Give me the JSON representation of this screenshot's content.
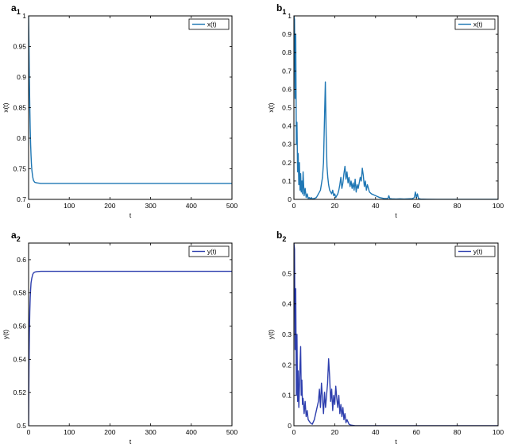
{
  "chart_data": [
    {
      "id": "a1",
      "panel_label": {
        "main": "a",
        "sub": "1"
      },
      "type": "line",
      "xlabel": "t",
      "ylabel": "x(t)",
      "xlim": [
        0,
        500
      ],
      "ylim": [
        0.7,
        1
      ],
      "xticks": [
        0,
        100,
        200,
        300,
        400,
        500
      ],
      "xtick_labels": [
        "0",
        "100",
        "200",
        "300",
        "400",
        "500"
      ],
      "yticks": [
        0.7,
        0.75,
        0.8,
        0.85,
        0.9,
        0.95,
        1
      ],
      "ytick_labels": [
        "0.7",
        "0.75",
        "0.8",
        "0.85",
        "0.9",
        "0.95",
        "1"
      ],
      "legend": {
        "placement": "top-right"
      },
      "series": [
        {
          "name": "x(t)",
          "color": "#1f77b4",
          "x": [
            0,
            1,
            2,
            3,
            4,
            5,
            6,
            7,
            8,
            10,
            12,
            15,
            20,
            30,
            50,
            100,
            200,
            300,
            400,
            500
          ],
          "y": [
            1,
            0.95,
            0.895,
            0.85,
            0.815,
            0.79,
            0.772,
            0.758,
            0.748,
            0.737,
            0.731,
            0.728,
            0.727,
            0.726,
            0.726,
            0.726,
            0.726,
            0.726,
            0.726,
            0.726
          ]
        }
      ]
    },
    {
      "id": "b1",
      "panel_label": {
        "main": "b",
        "sub": "1"
      },
      "type": "line",
      "xlabel": "t",
      "ylabel": "x(t)",
      "xlim": [
        0,
        100
      ],
      "ylim": [
        0,
        1
      ],
      "xticks": [
        0,
        20,
        40,
        60,
        80,
        100
      ],
      "xtick_labels": [
        "0",
        "20",
        "40",
        "60",
        "80",
        "100"
      ],
      "yticks": [
        0,
        0.1,
        0.2,
        0.3,
        0.4,
        0.5,
        0.6,
        0.7,
        0.8,
        0.9,
        1
      ],
      "ytick_labels": [
        "0",
        "0.1",
        "0.2",
        "0.3",
        "0.4",
        "0.5",
        "0.6",
        "0.7",
        "0.8",
        "0.9",
        "1"
      ],
      "legend": {
        "placement": "top-right"
      },
      "series": [
        {
          "name": "x(t)",
          "color": "#1f77b4",
          "x": [
            0,
            0.3,
            0.6,
            0.9,
            1.2,
            1.5,
            1.8,
            2.1,
            2.4,
            2.7,
            3,
            3.3,
            3.6,
            3.9,
            4.2,
            4.5,
            5,
            5.5,
            6,
            6.5,
            7,
            7.5,
            8,
            8.5,
            9,
            10,
            11,
            12,
            13,
            14,
            14.5,
            15,
            15.4,
            15.8,
            16.2,
            16.6,
            17,
            17.5,
            18,
            18.5,
            19,
            19.5,
            20,
            20.5,
            21,
            21.5,
            22,
            22.5,
            23,
            23.5,
            24,
            24.5,
            25,
            25.5,
            26,
            26.5,
            27,
            27.5,
            28,
            28.5,
            29,
            29.5,
            30,
            30.5,
            31,
            31.5,
            32,
            32.5,
            33,
            33.5,
            34,
            34.5,
            35,
            35.5,
            36,
            37,
            38,
            40,
            42,
            44,
            46,
            46.5,
            47,
            48,
            50,
            52,
            54,
            56,
            58,
            59,
            59.5,
            60,
            60.5,
            61,
            62,
            65,
            70,
            80,
            90,
            100
          ],
          "y": [
            1,
            0.98,
            0.55,
            0.9,
            0.3,
            0.42,
            0.15,
            0.25,
            0.08,
            0.2,
            0.05,
            0.14,
            0.04,
            0.1,
            0.03,
            0.15,
            0.02,
            0.06,
            0.01,
            0.03,
            0.005,
            0.01,
            0.002,
            0.01,
            0.003,
            0.005,
            0.01,
            0.03,
            0.05,
            0.12,
            0.2,
            0.45,
            0.64,
            0.35,
            0.18,
            0.12,
            0.08,
            0.05,
            0.04,
            0.03,
            0.05,
            0.02,
            0.03,
            0.01,
            0.02,
            0.03,
            0.05,
            0.08,
            0.12,
            0.06,
            0.09,
            0.14,
            0.18,
            0.11,
            0.15,
            0.09,
            0.12,
            0.07,
            0.1,
            0.06,
            0.09,
            0.05,
            0.11,
            0.04,
            0.08,
            0.06,
            0.09,
            0.12,
            0.1,
            0.17,
            0.13,
            0.07,
            0.1,
            0.05,
            0.08,
            0.04,
            0.03,
            0.02,
            0.01,
            0.005,
            0.004,
            0.02,
            0.004,
            0.003,
            0.002,
            0.003,
            0.002,
            0.003,
            0.004,
            0.01,
            0.04,
            0.01,
            0.03,
            0.005,
            0.002,
            0.001,
            0,
            0,
            0,
            0
          ]
        }
      ]
    },
    {
      "id": "a2",
      "panel_label": {
        "main": "a",
        "sub": "2"
      },
      "type": "line",
      "xlabel": "t",
      "ylabel": "y(t)",
      "xlim": [
        0,
        500
      ],
      "ylim": [
        0.5,
        0.61
      ],
      "xticks": [
        0,
        100,
        200,
        300,
        400,
        500
      ],
      "xtick_labels": [
        "0",
        "100",
        "200",
        "300",
        "400",
        "500"
      ],
      "yticks": [
        0.5,
        0.52,
        0.54,
        0.56,
        0.58,
        0.6
      ],
      "ytick_labels": [
        "0.5",
        "0.52",
        "0.54",
        "0.56",
        "0.58",
        "0.6"
      ],
      "legend": {
        "placement": "top-right"
      },
      "series": [
        {
          "name": "y(t)",
          "color": "#2e3fae",
          "x": [
            0,
            1,
            2,
            3,
            4,
            5,
            6,
            8,
            10,
            12,
            15,
            20,
            30,
            50,
            100,
            200,
            300,
            400,
            500
          ],
          "y": [
            0.5,
            0.535,
            0.556,
            0.569,
            0.577,
            0.582,
            0.586,
            0.589,
            0.591,
            0.592,
            0.5925,
            0.5928,
            0.593,
            0.593,
            0.593,
            0.593,
            0.593,
            0.593,
            0.593
          ]
        }
      ]
    },
    {
      "id": "b2",
      "panel_label": {
        "main": "b",
        "sub": "2"
      },
      "type": "line",
      "xlabel": "t",
      "ylabel": "y(t)",
      "xlim": [
        0,
        100
      ],
      "ylim": [
        0,
        0.6
      ],
      "xticks": [
        0,
        20,
        40,
        60,
        80,
        100
      ],
      "xtick_labels": [
        "0",
        "20",
        "40",
        "60",
        "80",
        "100"
      ],
      "yticks": [
        0,
        0.1,
        0.2,
        0.3,
        0.4,
        0.5
      ],
      "ytick_labels": [
        "0",
        "0.1",
        "0.2",
        "0.3",
        "0.4",
        "0.5"
      ],
      "legend": {
        "placement": "top-right"
      },
      "series": [
        {
          "name": "y(t)",
          "color": "#2e3fae",
          "x": [
            0,
            0.3,
            0.6,
            0.9,
            1.2,
            1.5,
            1.8,
            2.1,
            2.4,
            2.7,
            3,
            3.3,
            3.6,
            3.9,
            4.2,
            4.5,
            5,
            5.5,
            6,
            6.5,
            7,
            8,
            9,
            10,
            11,
            12,
            12.5,
            13,
            13.5,
            14,
            14.5,
            15,
            15.5,
            16,
            16.5,
            17,
            17.5,
            18,
            18.5,
            19,
            19.5,
            20,
            20.5,
            21,
            21.5,
            22,
            22.5,
            23,
            23.5,
            24,
            24.5,
            25,
            25.5,
            26,
            27,
            28,
            30,
            40,
            60,
            80,
            100
          ],
          "y": [
            0.6,
            0.58,
            0.25,
            0.45,
            0.1,
            0.3,
            0.08,
            0.18,
            0.06,
            0.12,
            0.2,
            0.26,
            0.1,
            0.15,
            0.07,
            0.09,
            0.04,
            0.08,
            0.03,
            0.05,
            0.02,
            0.01,
            0.005,
            0.02,
            0.05,
            0.08,
            0.12,
            0.06,
            0.14,
            0.09,
            0.04,
            0.11,
            0.06,
            0.1,
            0.14,
            0.22,
            0.16,
            0.08,
            0.12,
            0.05,
            0.1,
            0.07,
            0.13,
            0.09,
            0.06,
            0.1,
            0.04,
            0.07,
            0.03,
            0.06,
            0.02,
            0.04,
            0.01,
            0.02,
            0.005,
            0.002,
            0,
            0,
            0,
            0,
            0
          ]
        }
      ]
    }
  ]
}
